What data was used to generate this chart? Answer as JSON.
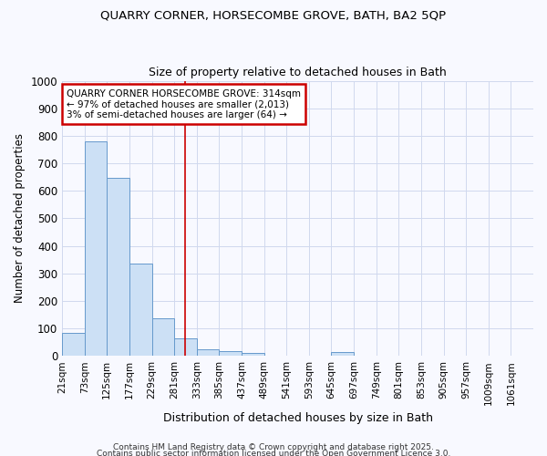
{
  "title1": "QUARRY CORNER, HORSECOMBE GROVE, BATH, BA2 5QP",
  "title2": "Size of property relative to detached houses in Bath",
  "xlabel": "Distribution of detached houses by size in Bath",
  "ylabel": "Number of detached properties",
  "annotation_line1": "QUARRY CORNER HORSECOMBE GROVE: 314sqm",
  "annotation_line2": "← 97% of detached houses are smaller (2,013)",
  "annotation_line3": "3% of semi-detached houses are larger (64) →",
  "bin_labels": [
    "21sqm",
    "73sqm",
    "125sqm",
    "177sqm",
    "229sqm",
    "281sqm",
    "333sqm",
    "385sqm",
    "437sqm",
    "489sqm",
    "541sqm",
    "593sqm",
    "645sqm",
    "697sqm",
    "749sqm",
    "801sqm",
    "853sqm",
    "905sqm",
    "957sqm",
    "1009sqm",
    "1061sqm"
  ],
  "bar_heights": [
    84,
    780,
    648,
    335,
    136,
    62,
    25,
    18,
    10,
    0,
    0,
    0,
    13,
    0,
    0,
    0,
    0,
    0,
    0,
    0,
    0
  ],
  "bar_color": "#cce0f5",
  "bar_edge_color": "#6699cc",
  "vline_x_index": 5.48,
  "vline_color": "#cc0000",
  "annotation_box_color": "#cc0000",
  "ylim": [
    0,
    1000
  ],
  "yticks": [
    0,
    100,
    200,
    300,
    400,
    500,
    600,
    700,
    800,
    900,
    1000
  ],
  "footer1": "Contains HM Land Registry data © Crown copyright and database right 2025.",
  "footer2": "Contains public sector information licensed under the Open Government Licence 3.0.",
  "background_color": "#f8f9ff",
  "grid_color": "#d0d8ee"
}
